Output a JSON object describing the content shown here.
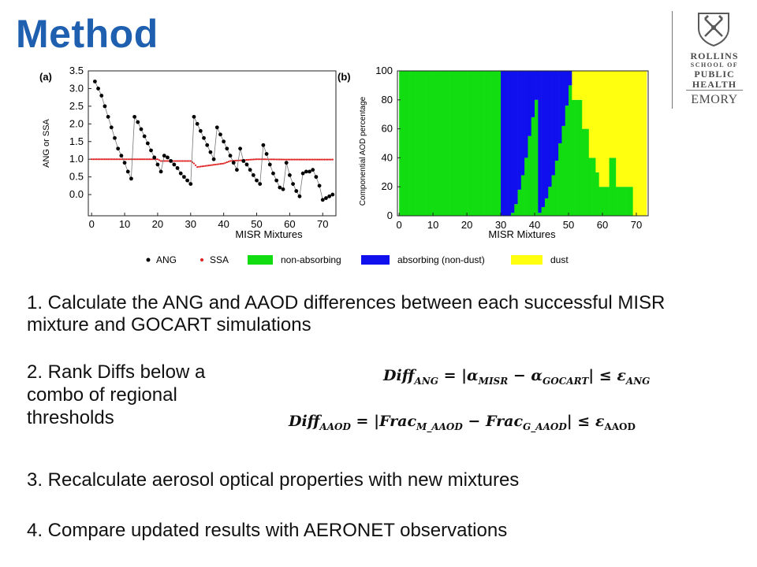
{
  "slide": {
    "title": "Method"
  },
  "logo": {
    "line1": "ROLLINS",
    "line2": "SCHOOL OF",
    "line3": "PUBLIC",
    "line4": "HEALTH",
    "line5": "EMORY"
  },
  "figure": {
    "panel_a_label": "(a)",
    "panel_b_label": "(b)",
    "legend": {
      "ang": "ANG",
      "ssa": "SSA",
      "non_absorbing": "non-absorbing",
      "absorbing": "absorbing (non-dust)",
      "dust": "dust"
    },
    "colors": {
      "ang": "#000000",
      "ssa": "#e02020",
      "non_absorbing": "#11dd11",
      "absorbing": "#1010ee",
      "dust": "#ffff10"
    }
  },
  "chart_data": [
    {
      "type": "scatter",
      "panel": "(a)",
      "xlabel": "MISR Mixtures",
      "ylabel": "ANG or SSA",
      "xlim": [
        -1,
        74
      ],
      "ylim": [
        -0.6,
        3.5
      ],
      "x_ticks": [
        "0",
        "10",
        "20",
        "30",
        "40",
        "50",
        "60",
        "70"
      ],
      "y_ticks": [
        "0.0",
        "0.5",
        "1.0",
        "1.5",
        "2.0",
        "2.5",
        "3.0",
        "3.5"
      ],
      "series": [
        {
          "name": "ANG",
          "x": [
            1,
            2,
            3,
            4,
            5,
            6,
            7,
            8,
            9,
            10,
            11,
            12,
            13,
            14,
            15,
            16,
            17,
            18,
            19,
            20,
            21,
            22,
            23,
            24,
            25,
            26,
            27,
            28,
            29,
            30,
            31,
            32,
            33,
            34,
            35,
            36,
            37,
            38,
            39,
            40,
            41,
            42,
            43,
            44,
            45,
            46,
            47,
            48,
            49,
            50,
            51,
            52,
            53,
            54,
            55,
            56,
            57,
            58,
            59,
            60,
            61,
            62,
            63,
            64,
            65,
            66,
            67,
            68,
            69,
            70,
            71,
            72,
            73
          ],
          "y": [
            3.2,
            3.0,
            2.8,
            2.5,
            2.2,
            1.9,
            1.6,
            1.3,
            1.1,
            0.9,
            0.65,
            0.45,
            2.2,
            2.05,
            1.85,
            1.65,
            1.45,
            1.25,
            1.05,
            0.85,
            0.65,
            1.1,
            1.05,
            0.95,
            0.85,
            0.75,
            0.6,
            0.5,
            0.4,
            0.3,
            2.2,
            2.0,
            1.8,
            1.6,
            1.4,
            1.2,
            1.0,
            1.9,
            1.7,
            1.5,
            1.3,
            1.1,
            0.9,
            0.7,
            1.3,
            0.95,
            0.85,
            0.7,
            0.55,
            0.4,
            0.3,
            1.4,
            1.15,
            0.85,
            0.6,
            0.4,
            0.2,
            0.15,
            0.9,
            0.55,
            0.3,
            0.1,
            -0.05,
            0.6,
            0.65,
            0.65,
            0.7,
            0.5,
            0.25,
            -0.15,
            -0.1,
            -0.05,
            0.0
          ]
        },
        {
          "name": "SSA",
          "x": [
            0,
            10,
            20,
            21,
            30,
            31,
            32,
            40,
            42,
            50,
            51,
            60,
            70,
            73
          ],
          "y": [
            1.0,
            1.0,
            1.0,
            0.95,
            0.95,
            0.88,
            0.78,
            0.88,
            0.95,
            1.0,
            1.0,
            0.99,
            0.99,
            0.99
          ]
        }
      ]
    },
    {
      "type": "bar",
      "panel": "(b)",
      "stacked": true,
      "xlabel": "MISR Mixtures",
      "ylabel": "Componential AOD percentage",
      "xlim": [
        0,
        74
      ],
      "ylim": [
        0,
        100
      ],
      "x_ticks": [
        "0",
        "10",
        "20",
        "30",
        "40",
        "50",
        "60",
        "70"
      ],
      "y_ticks": [
        "0",
        "20",
        "40",
        "60",
        "80",
        "100"
      ],
      "series": [
        {
          "name": "non-absorbing"
        },
        {
          "name": "absorbing (non-dust)"
        },
        {
          "name": "dust"
        }
      ],
      "columns": [
        {
          "x": 0,
          "non": 100,
          "abs": 0,
          "dust": 0
        },
        {
          "x": 1,
          "non": 100,
          "abs": 0,
          "dust": 0
        },
        {
          "x": 2,
          "non": 100,
          "abs": 0,
          "dust": 0
        },
        {
          "x": 3,
          "non": 100,
          "abs": 0,
          "dust": 0
        },
        {
          "x": 4,
          "non": 100,
          "abs": 0,
          "dust": 0
        },
        {
          "x": 5,
          "non": 100,
          "abs": 0,
          "dust": 0
        },
        {
          "x": 6,
          "non": 100,
          "abs": 0,
          "dust": 0
        },
        {
          "x": 7,
          "non": 100,
          "abs": 0,
          "dust": 0
        },
        {
          "x": 8,
          "non": 100,
          "abs": 0,
          "dust": 0
        },
        {
          "x": 9,
          "non": 100,
          "abs": 0,
          "dust": 0
        },
        {
          "x": 10,
          "non": 100,
          "abs": 0,
          "dust": 0
        },
        {
          "x": 11,
          "non": 100,
          "abs": 0,
          "dust": 0
        },
        {
          "x": 12,
          "non": 100,
          "abs": 0,
          "dust": 0
        },
        {
          "x": 13,
          "non": 100,
          "abs": 0,
          "dust": 0
        },
        {
          "x": 14,
          "non": 100,
          "abs": 0,
          "dust": 0
        },
        {
          "x": 15,
          "non": 100,
          "abs": 0,
          "dust": 0
        },
        {
          "x": 16,
          "non": 100,
          "abs": 0,
          "dust": 0
        },
        {
          "x": 17,
          "non": 100,
          "abs": 0,
          "dust": 0
        },
        {
          "x": 18,
          "non": 100,
          "abs": 0,
          "dust": 0
        },
        {
          "x": 19,
          "non": 100,
          "abs": 0,
          "dust": 0
        },
        {
          "x": 20,
          "non": 100,
          "abs": 0,
          "dust": 0
        },
        {
          "x": 21,
          "non": 100,
          "abs": 0,
          "dust": 0
        },
        {
          "x": 22,
          "non": 100,
          "abs": 0,
          "dust": 0
        },
        {
          "x": 23,
          "non": 100,
          "abs": 0,
          "dust": 0
        },
        {
          "x": 24,
          "non": 100,
          "abs": 0,
          "dust": 0
        },
        {
          "x": 25,
          "non": 100,
          "abs": 0,
          "dust": 0
        },
        {
          "x": 26,
          "non": 100,
          "abs": 0,
          "dust": 0
        },
        {
          "x": 27,
          "non": 100,
          "abs": 0,
          "dust": 0
        },
        {
          "x": 28,
          "non": 100,
          "abs": 0,
          "dust": 0
        },
        {
          "x": 29,
          "non": 100,
          "abs": 0,
          "dust": 0
        },
        {
          "x": 30,
          "non": 0,
          "abs": 100,
          "dust": 0
        },
        {
          "x": 31,
          "non": 0,
          "abs": 100,
          "dust": 0
        },
        {
          "x": 32,
          "non": 0,
          "abs": 100,
          "dust": 0
        },
        {
          "x": 33,
          "non": 2,
          "abs": 98,
          "dust": 0
        },
        {
          "x": 34,
          "non": 8,
          "abs": 92,
          "dust": 0
        },
        {
          "x": 35,
          "non": 18,
          "abs": 82,
          "dust": 0
        },
        {
          "x": 36,
          "non": 28,
          "abs": 72,
          "dust": 0
        },
        {
          "x": 37,
          "non": 40,
          "abs": 60,
          "dust": 0
        },
        {
          "x": 38,
          "non": 55,
          "abs": 45,
          "dust": 0
        },
        {
          "x": 39,
          "non": 68,
          "abs": 32,
          "dust": 0
        },
        {
          "x": 40,
          "non": 80,
          "abs": 20,
          "dust": 0
        },
        {
          "x": 41,
          "non": 2,
          "abs": 98,
          "dust": 0
        },
        {
          "x": 42,
          "non": 6,
          "abs": 94,
          "dust": 0
        },
        {
          "x": 43,
          "non": 12,
          "abs": 88,
          "dust": 0
        },
        {
          "x": 44,
          "non": 20,
          "abs": 80,
          "dust": 0
        },
        {
          "x": 45,
          "non": 28,
          "abs": 72,
          "dust": 0
        },
        {
          "x": 46,
          "non": 38,
          "abs": 62,
          "dust": 0
        },
        {
          "x": 47,
          "non": 50,
          "abs": 50,
          "dust": 0
        },
        {
          "x": 48,
          "non": 62,
          "abs": 38,
          "dust": 0
        },
        {
          "x": 49,
          "non": 76,
          "abs": 24,
          "dust": 0
        },
        {
          "x": 50,
          "non": 90,
          "abs": 10,
          "dust": 0
        },
        {
          "x": 51,
          "non": 80,
          "abs": 0,
          "dust": 20
        },
        {
          "x": 52,
          "non": 80,
          "abs": 0,
          "dust": 20
        },
        {
          "x": 53,
          "non": 80,
          "abs": 0,
          "dust": 20
        },
        {
          "x": 54,
          "non": 60,
          "abs": 0,
          "dust": 40
        },
        {
          "x": 55,
          "non": 60,
          "abs": 0,
          "dust": 40
        },
        {
          "x": 56,
          "non": 40,
          "abs": 0,
          "dust": 60
        },
        {
          "x": 57,
          "non": 40,
          "abs": 0,
          "dust": 60
        },
        {
          "x": 58,
          "non": 30,
          "abs": 0,
          "dust": 70
        },
        {
          "x": 59,
          "non": 20,
          "abs": 0,
          "dust": 80
        },
        {
          "x": 60,
          "non": 20,
          "abs": 0,
          "dust": 80
        },
        {
          "x": 61,
          "non": 20,
          "abs": 0,
          "dust": 80
        },
        {
          "x": 62,
          "non": 40,
          "abs": 0,
          "dust": 60
        },
        {
          "x": 63,
          "non": 40,
          "abs": 0,
          "dust": 60
        },
        {
          "x": 64,
          "non": 20,
          "abs": 0,
          "dust": 80
        },
        {
          "x": 65,
          "non": 20,
          "abs": 0,
          "dust": 80
        },
        {
          "x": 66,
          "non": 20,
          "abs": 0,
          "dust": 80
        },
        {
          "x": 67,
          "non": 20,
          "abs": 0,
          "dust": 80
        },
        {
          "x": 68,
          "non": 20,
          "abs": 0,
          "dust": 80
        },
        {
          "x": 69,
          "non": 0,
          "abs": 0,
          "dust": 100
        },
        {
          "x": 70,
          "non": 0,
          "abs": 0,
          "dust": 100
        },
        {
          "x": 71,
          "non": 0,
          "abs": 0,
          "dust": 100
        },
        {
          "x": 72,
          "non": 0,
          "abs": 0,
          "dust": 100
        }
      ]
    }
  ],
  "steps": {
    "step1": "1. Calculate the ANG and AAOD differences between each successful MISR mixture and GOCART simulations",
    "step2": "2. Rank Diffs below a combo of regional thresholds",
    "step3": "3. Recalculate aerosol optical properties with new mixtures",
    "step4": "4. Compare updated results with AERONET observations"
  },
  "equations": {
    "eq1": {
      "lhs": "Diff",
      "lhs_sub": "ANG",
      "rhs_a": "α",
      "rhs_a_sub": "MISR",
      "rhs_b": "α",
      "rhs_b_sub": "GOCART",
      "eps": "ε",
      "eps_sub": "ANG"
    },
    "eq2": {
      "lhs": "Diff",
      "lhs_sub": "AAOD",
      "rhs_a": "Frac",
      "rhs_a_sub": "M_AAOD",
      "rhs_b": "Frac",
      "rhs_b_sub": "G_AAOD",
      "eps": "ε",
      "eps_sub": "AAOD"
    }
  }
}
